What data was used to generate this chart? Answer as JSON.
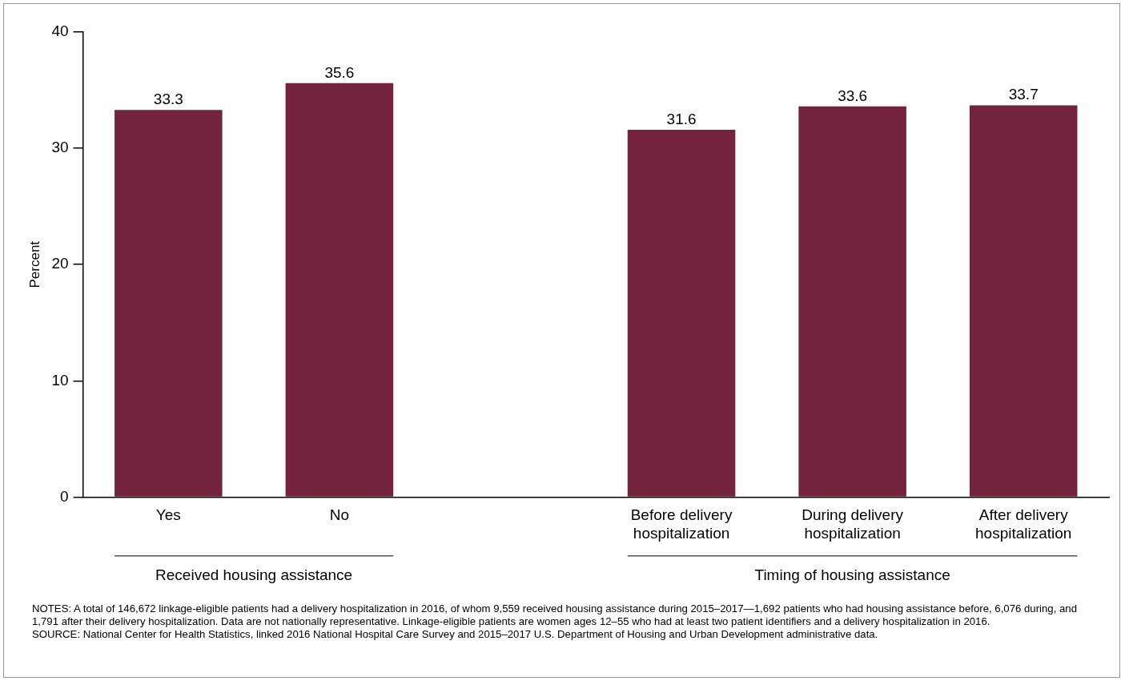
{
  "chart_data": {
    "type": "bar",
    "ylabel": "Percent",
    "categories": [
      "Yes",
      "No",
      null,
      "Before delivery hospitalization",
      "During delivery hospitalization",
      "After delivery hospitalization"
    ],
    "values": [
      33.3,
      35.6,
      null,
      31.6,
      33.6,
      33.7
    ],
    "color": "#74233d",
    "ylim": [
      0,
      40
    ],
    "yticks": [
      0,
      10,
      20,
      30,
      40
    ],
    "grid": false,
    "legend": false,
    "data_labels": true,
    "annotations": [
      "Received housing assistance",
      "Timing of housing assistance",
      "NOTES: A total of 146,672 linkage-eligible patients had a delivery hospitalization in 2016, of whom 9,559 received housing assistance during 2015–2017—1,692 patients who had housing assistance before, 6,076 during, and 1,791 after their delivery hospitalization. Data are not nationally representative. Linkage-eligible patients are women ages 12–55 who had at least two patient identifiers and a delivery hospitalization in 2016.",
      "SOURCE: National Center for Health Statistics, linked 2016 National Hospital Care Survey and 2015–2017 U.S. Department of Housing and Urban Development administrative data."
    ]
  }
}
